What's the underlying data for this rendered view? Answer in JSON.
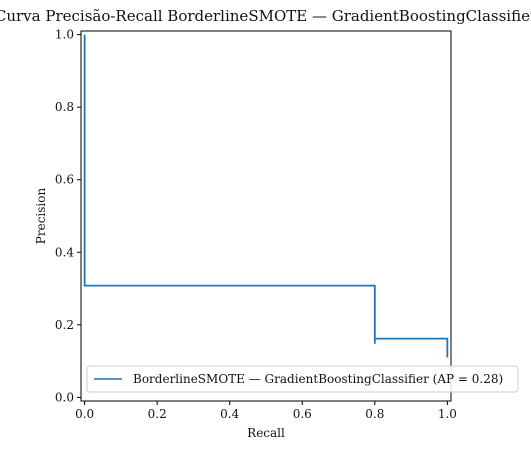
{
  "chart_data": {
    "type": "line",
    "title": "Curva Precisão-Recall BorderlineSMOTE — GradientBoostingClassifier",
    "xlabel": "Recall",
    "ylabel": "Precision",
    "xlim": [
      -0.01,
      1.01
    ],
    "ylim": [
      -0.01,
      1.01
    ],
    "xticks": [
      0.0,
      0.2,
      0.4,
      0.6,
      0.8,
      1.0
    ],
    "xtick_labels": [
      "0.0",
      "0.2",
      "0.4",
      "0.6",
      "0.8",
      "1.0"
    ],
    "yticks": [
      0.0,
      0.2,
      0.4,
      0.6,
      0.8,
      1.0
    ],
    "ytick_labels": [
      "0.0",
      "0.2",
      "0.4",
      "0.6",
      "0.8",
      "1.0"
    ],
    "grid": false,
    "legend_position": "lower-right",
    "series": [
      {
        "name": "BorderlineSMOTE — GradientBoostingClassifier (AP = 0.28)",
        "color": "#1f77b4",
        "drawstyle": "steps-post",
        "points": [
          {
            "x": 0.0,
            "y": 1.0
          },
          {
            "x": 0.0,
            "y": 0.308
          },
          {
            "x": 0.8,
            "y": 0.308
          },
          {
            "x": 0.8,
            "y": 0.148
          },
          {
            "x": 0.8,
            "y": 0.162
          },
          {
            "x": 1.0,
            "y": 0.162
          },
          {
            "x": 1.0,
            "y": 0.11
          }
        ]
      }
    ]
  }
}
